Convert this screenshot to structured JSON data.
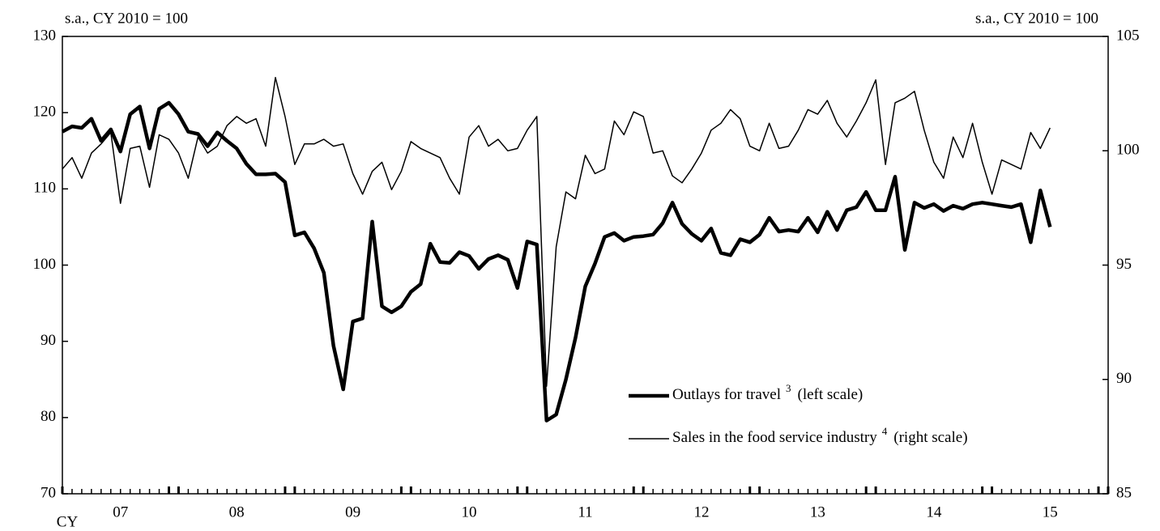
{
  "chart_data": {
    "type": "line",
    "y_unit_left": "s.a., CY 2010 = 100",
    "y_unit_right": "s.a., CY 2010 = 100",
    "x_labels": [
      "CY",
      "07",
      "08",
      "09",
      "10",
      "11",
      "12",
      "13",
      "14",
      "15"
    ],
    "ylim": [
      70,
      130
    ],
    "yticks": [
      70,
      80,
      90,
      100,
      110,
      120,
      130
    ],
    "y2lim": [
      85,
      105
    ],
    "y2ticks": [
      85,
      90,
      95,
      100,
      105
    ],
    "legend": "lower right",
    "series": [
      {
        "name": "Outlays for travel",
        "footnote": "3",
        "scale_note": "(left scale)",
        "color": "#000000",
        "axis": "y",
        "values": [
          117.5,
          118.2,
          118.0,
          119.2,
          116.3,
          117.8,
          114.9,
          119.8,
          120.8,
          115.3,
          120.5,
          121.3,
          119.8,
          117.5,
          117.2,
          115.6,
          117.4,
          116.3,
          115.3,
          113.3,
          111.9,
          111.9,
          112.0,
          110.9,
          103.9,
          104.3,
          102.2,
          99.0,
          89.4,
          83.7,
          92.6,
          93.0,
          105.7,
          94.6,
          93.8,
          94.6,
          96.5,
          97.5,
          102.8,
          100.4,
          100.3,
          101.7,
          101.2,
          99.5,
          100.8,
          101.3,
          100.7,
          97.0,
          103.1,
          102.7,
          79.6,
          80.4,
          85.0,
          90.5,
          97.2,
          100.2,
          103.7,
          104.2,
          103.2,
          103.7,
          103.8,
          104.0,
          105.5,
          108.2,
          105.4,
          104.1,
          103.2,
          104.8,
          101.6,
          101.3,
          103.4,
          103.0,
          104.0,
          106.2,
          104.4,
          104.6,
          104.4,
          106.2,
          104.3,
          107.0,
          104.6,
          107.2,
          107.6,
          109.6,
          107.2,
          107.2,
          111.6,
          102.0,
          108.2,
          107.5,
          108.0,
          107.1,
          107.8,
          107.4,
          108.0,
          108.2,
          108.0,
          107.8,
          107.6,
          108.0,
          103.0,
          109.8,
          105.0
        ]
      },
      {
        "name": "Sales in the food service industry",
        "footnote": "4",
        "scale_note": "(right scale)",
        "color": "#000000",
        "axis": "y2",
        "values": [
          99.2,
          99.7,
          98.8,
          99.9,
          100.3,
          100.8,
          97.7,
          100.1,
          100.2,
          98.4,
          100.7,
          100.5,
          99.9,
          98.8,
          100.6,
          99.9,
          100.2,
          101.1,
          101.5,
          101.2,
          101.4,
          100.2,
          103.2,
          101.5,
          99.4,
          100.3,
          100.3,
          100.5,
          100.2,
          100.3,
          99.0,
          98.1,
          99.1,
          99.5,
          98.3,
          99.1,
          100.4,
          100.1,
          99.9,
          99.7,
          98.8,
          98.1,
          100.6,
          101.1,
          100.2,
          100.5,
          100.0,
          100.1,
          100.9,
          101.5,
          89.7,
          95.8,
          98.2,
          97.9,
          99.8,
          99.0,
          99.2,
          101.3,
          100.7,
          101.7,
          101.5,
          99.9,
          100.0,
          98.9,
          98.6,
          99.2,
          99.9,
          100.9,
          101.2,
          101.8,
          101.4,
          100.2,
          100.0,
          101.2,
          100.1,
          100.2,
          100.9,
          101.8,
          101.6,
          102.2,
          101.2,
          100.6,
          101.3,
          102.1,
          103.1,
          99.4,
          102.1,
          102.3,
          102.6,
          100.9,
          99.5,
          98.8,
          100.6,
          99.7,
          101.2,
          99.5,
          98.1,
          99.6,
          99.4,
          99.2,
          100.8,
          100.1,
          101.0
        ]
      }
    ]
  }
}
